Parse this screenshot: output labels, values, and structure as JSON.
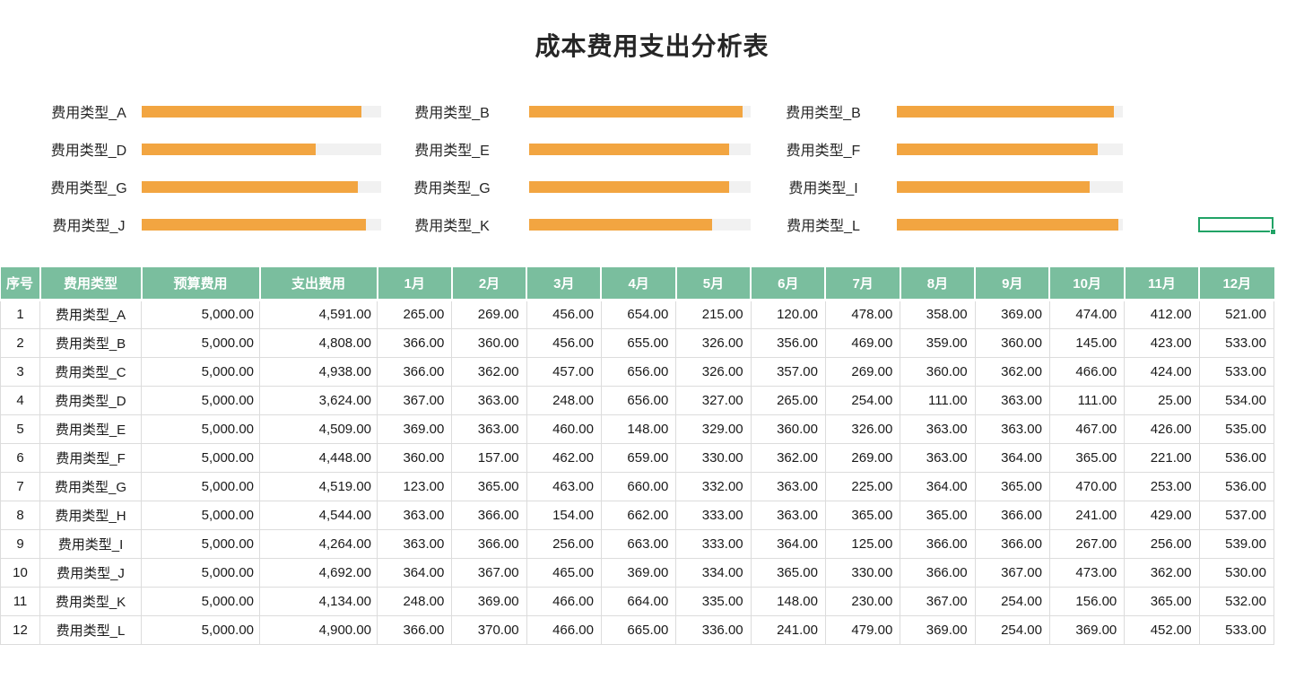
{
  "title": "成本费用支出分析表",
  "colors": {
    "header_green": "#7ABE9E",
    "bar_orange": "#F2A541",
    "bar_track": "#F1F1F1",
    "selection_green": "#21A366",
    "border_gray": "#DCDCDC",
    "body_text": "#1A1A1A"
  },
  "chart_data": {
    "type": "bar",
    "columns": [
      {
        "items": [
          {
            "label": "费用类型_A",
            "percent": 91.8
          },
          {
            "label": "费用类型_D",
            "percent": 72.5
          },
          {
            "label": "费用类型_G",
            "percent": 90.4
          },
          {
            "label": "费用类型_J",
            "percent": 93.8
          }
        ]
      },
      {
        "items": [
          {
            "label": "费用类型_B",
            "percent": 96.2
          },
          {
            "label": "费用类型_E",
            "percent": 90.2
          },
          {
            "label": "费用类型_G",
            "percent": 90.4
          },
          {
            "label": "费用类型_K",
            "percent": 82.7
          }
        ]
      },
      {
        "items": [
          {
            "label": "费用类型_B",
            "percent": 96.2
          },
          {
            "label": "费用类型_F",
            "percent": 89.0
          },
          {
            "label": "费用类型_I",
            "percent": 85.3
          },
          {
            "label": "费用类型_L",
            "percent": 98.0
          }
        ]
      }
    ]
  },
  "table": {
    "headers": [
      "序号",
      "费用类型",
      "预算费用",
      "支出费用",
      "1月",
      "2月",
      "3月",
      "4月",
      "5月",
      "6月",
      "7月",
      "8月",
      "9月",
      "10月",
      "11月",
      "12月"
    ],
    "rows": [
      {
        "no": "1",
        "type": "费用类型_A",
        "budget": "5,000.00",
        "spent": "4,591.00",
        "months": [
          "265.00",
          "269.00",
          "456.00",
          "654.00",
          "215.00",
          "120.00",
          "478.00",
          "358.00",
          "369.00",
          "474.00",
          "412.00",
          "521.00"
        ]
      },
      {
        "no": "2",
        "type": "费用类型_B",
        "budget": "5,000.00",
        "spent": "4,808.00",
        "months": [
          "366.00",
          "360.00",
          "456.00",
          "655.00",
          "326.00",
          "356.00",
          "469.00",
          "359.00",
          "360.00",
          "145.00",
          "423.00",
          "533.00"
        ]
      },
      {
        "no": "3",
        "type": "费用类型_C",
        "budget": "5,000.00",
        "spent": "4,938.00",
        "months": [
          "366.00",
          "362.00",
          "457.00",
          "656.00",
          "326.00",
          "357.00",
          "269.00",
          "360.00",
          "362.00",
          "466.00",
          "424.00",
          "533.00"
        ]
      },
      {
        "no": "4",
        "type": "费用类型_D",
        "budget": "5,000.00",
        "spent": "3,624.00",
        "months": [
          "367.00",
          "363.00",
          "248.00",
          "656.00",
          "327.00",
          "265.00",
          "254.00",
          "111.00",
          "363.00",
          "111.00",
          "25.00",
          "534.00"
        ]
      },
      {
        "no": "5",
        "type": "费用类型_E",
        "budget": "5,000.00",
        "spent": "4,509.00",
        "months": [
          "369.00",
          "363.00",
          "460.00",
          "148.00",
          "329.00",
          "360.00",
          "326.00",
          "363.00",
          "363.00",
          "467.00",
          "426.00",
          "535.00"
        ]
      },
      {
        "no": "6",
        "type": "费用类型_F",
        "budget": "5,000.00",
        "spent": "4,448.00",
        "months": [
          "360.00",
          "157.00",
          "462.00",
          "659.00",
          "330.00",
          "362.00",
          "269.00",
          "363.00",
          "364.00",
          "365.00",
          "221.00",
          "536.00"
        ]
      },
      {
        "no": "7",
        "type": "费用类型_G",
        "budget": "5,000.00",
        "spent": "4,519.00",
        "months": [
          "123.00",
          "365.00",
          "463.00",
          "660.00",
          "332.00",
          "363.00",
          "225.00",
          "364.00",
          "365.00",
          "470.00",
          "253.00",
          "536.00"
        ]
      },
      {
        "no": "8",
        "type": "费用类型_H",
        "budget": "5,000.00",
        "spent": "4,544.00",
        "months": [
          "363.00",
          "366.00",
          "154.00",
          "662.00",
          "333.00",
          "363.00",
          "365.00",
          "365.00",
          "366.00",
          "241.00",
          "429.00",
          "537.00"
        ]
      },
      {
        "no": "9",
        "type": "费用类型_I",
        "budget": "5,000.00",
        "spent": "4,264.00",
        "months": [
          "363.00",
          "366.00",
          "256.00",
          "663.00",
          "333.00",
          "364.00",
          "125.00",
          "366.00",
          "366.00",
          "267.00",
          "256.00",
          "539.00"
        ]
      },
      {
        "no": "10",
        "type": "费用类型_J",
        "budget": "5,000.00",
        "spent": "4,692.00",
        "months": [
          "364.00",
          "367.00",
          "465.00",
          "369.00",
          "334.00",
          "365.00",
          "330.00",
          "366.00",
          "367.00",
          "473.00",
          "362.00",
          "530.00"
        ]
      },
      {
        "no": "11",
        "type": "费用类型_K",
        "budget": "5,000.00",
        "spent": "4,134.00",
        "months": [
          "248.00",
          "369.00",
          "466.00",
          "664.00",
          "335.00",
          "148.00",
          "230.00",
          "367.00",
          "254.00",
          "156.00",
          "365.00",
          "532.00"
        ]
      },
      {
        "no": "12",
        "type": "费用类型_L",
        "budget": "5,000.00",
        "spent": "4,900.00",
        "months": [
          "366.00",
          "370.00",
          "466.00",
          "665.00",
          "336.00",
          "241.00",
          "479.00",
          "369.00",
          "254.00",
          "369.00",
          "452.00",
          "533.00"
        ]
      }
    ]
  }
}
